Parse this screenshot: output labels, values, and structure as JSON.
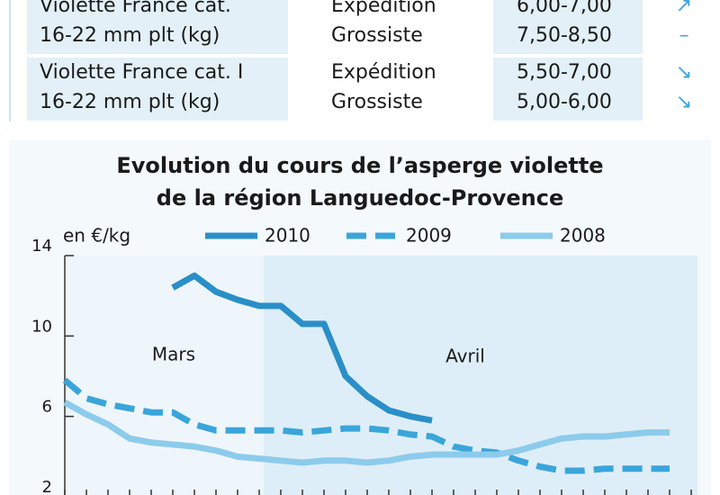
{
  "table": {
    "rows": [
      {
        "product": [
          "Violette France cat.",
          "16-22 mm plt (kg)"
        ],
        "markets": [
          "Expédition",
          "Grossiste"
        ],
        "prices": [
          "6,00-7,00",
          "7,50-8,50"
        ],
        "trends": [
          "↗",
          "–"
        ]
      },
      {
        "product": [
          "Violette France cat. I",
          "16-22 mm plt (kg)"
        ],
        "markets": [
          "Expédition",
          "Grossiste"
        ],
        "prices": [
          "5,50-7,00",
          "5,00-6,00"
        ],
        "trends": [
          "↘",
          "↘"
        ]
      }
    ]
  },
  "chart_data": {
    "type": "line",
    "title": [
      "Evolution du cours de l’asperge violette",
      "de la région Languedoc-Provence"
    ],
    "y_label": "en €/kg",
    "months": [
      "Mars",
      "Avril"
    ],
    "x": [
      0,
      1,
      2,
      3,
      4,
      5,
      6,
      7,
      8,
      9,
      10,
      11,
      12,
      13,
      14,
      15,
      16,
      17,
      18,
      19,
      20,
      21,
      22,
      23,
      24,
      25,
      26,
      27,
      28,
      29
    ],
    "xlim": [
      0,
      29
    ],
    "xticks": [
      0,
      1,
      2,
      3,
      4,
      5,
      6,
      7,
      8,
      9,
      10,
      11,
      12,
      13,
      14,
      15,
      16,
      17,
      18,
      19,
      20,
      21,
      22,
      23,
      24,
      25,
      26,
      27,
      28,
      29
    ],
    "ylim": [
      2,
      14
    ],
    "yticks": [
      2,
      6,
      10,
      14
    ],
    "series": [
      {
        "name": "2010",
        "color": "#2a8fc8",
        "dash": false,
        "values": [
          null,
          null,
          null,
          null,
          null,
          12.4,
          13.0,
          12.2,
          11.8,
          11.5,
          11.5,
          10.6,
          10.6,
          8.0,
          7.0,
          6.3,
          6.0,
          5.8,
          null,
          null,
          null,
          null,
          null,
          null,
          null,
          null,
          null,
          null,
          null,
          null
        ]
      },
      {
        "name": "2009",
        "color": "#3aa5da",
        "dash": true,
        "values": [
          7.8,
          6.9,
          6.6,
          6.4,
          6.2,
          6.2,
          5.6,
          5.3,
          5.3,
          5.3,
          5.3,
          5.2,
          5.3,
          5.4,
          5.4,
          5.3,
          5.1,
          5.0,
          4.5,
          4.3,
          4.2,
          3.8,
          3.5,
          3.3,
          3.3,
          3.4,
          3.4,
          3.4,
          3.4,
          null
        ]
      },
      {
        "name": "2008",
        "color": "#8ccbeb",
        "dash": false,
        "values": [
          6.7,
          6.1,
          5.6,
          4.9,
          4.7,
          4.6,
          4.5,
          4.3,
          4.0,
          3.9,
          3.8,
          3.7,
          3.8,
          3.8,
          3.7,
          3.8,
          4.0,
          4.1,
          4.1,
          4.1,
          4.1,
          4.3,
          4.6,
          4.9,
          5.0,
          5.0,
          5.1,
          5.2,
          5.2,
          null
        ]
      }
    ]
  }
}
